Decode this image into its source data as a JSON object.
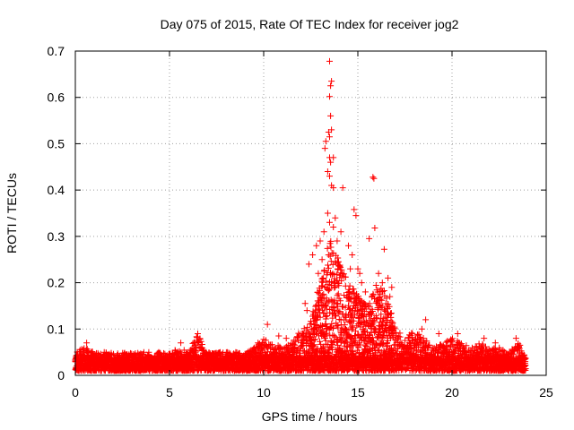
{
  "chart_data": {
    "type": "scatter",
    "title": "Day 075 of 2015, Rate Of TEC Index for receiver jog2",
    "xlabel": "GPS time / hours",
    "ylabel": "ROTI / TECUs",
    "xlim": [
      0,
      25
    ],
    "ylim": [
      0,
      0.7
    ],
    "x_ticks": [
      0,
      5,
      10,
      15,
      20,
      25
    ],
    "x_tick_labels": [
      "0",
      "5",
      "10",
      "15",
      "20",
      "25"
    ],
    "y_ticks": [
      0,
      0.1,
      0.2,
      0.3,
      0.4,
      0.5,
      0.6,
      0.7
    ],
    "y_tick_labels": [
      "0",
      "0.1",
      "0.2",
      "0.3",
      "0.4",
      "0.5",
      "0.6",
      "0.7"
    ],
    "grid": true,
    "marker": "+",
    "series": [
      {
        "name": "ROTI",
        "color": "#ff0000",
        "envelope_x": [
          0,
          0.5,
          1,
          2,
          3,
          4,
          5,
          5.5,
          6,
          6.5,
          7,
          8,
          9,
          9.5,
          10,
          10.5,
          11,
          11.5,
          12,
          12.5,
          13,
          13.5,
          14,
          14.5,
          15,
          15.5,
          16,
          16.5,
          17,
          17.5,
          18,
          18.5,
          19,
          19.5,
          20,
          20.5,
          21,
          21.5,
          22,
          22.5,
          23,
          23.5,
          23.9
        ],
        "envelope_y": [
          0.05,
          0.06,
          0.05,
          0.05,
          0.05,
          0.05,
          0.05,
          0.06,
          0.05,
          0.09,
          0.05,
          0.05,
          0.05,
          0.06,
          0.08,
          0.07,
          0.06,
          0.07,
          0.1,
          0.12,
          0.2,
          0.3,
          0.25,
          0.2,
          0.18,
          0.15,
          0.2,
          0.18,
          0.1,
          0.08,
          0.1,
          0.08,
          0.06,
          0.07,
          0.08,
          0.07,
          0.06,
          0.07,
          0.06,
          0.06,
          0.05,
          0.07,
          0.05
        ],
        "floor": 0.01,
        "base_level": 0.03,
        "points": [
          [
            13.5,
            0.678
          ],
          [
            13.6,
            0.635
          ],
          [
            13.55,
            0.625
          ],
          [
            13.5,
            0.602
          ],
          [
            13.55,
            0.56
          ],
          [
            13.45,
            0.525
          ],
          [
            13.6,
            0.53
          ],
          [
            13.5,
            0.515
          ],
          [
            13.3,
            0.505
          ],
          [
            13.25,
            0.49
          ],
          [
            13.5,
            0.47
          ],
          [
            13.7,
            0.47
          ],
          [
            13.55,
            0.46
          ],
          [
            13.4,
            0.44
          ],
          [
            13.5,
            0.43
          ],
          [
            13.6,
            0.41
          ],
          [
            13.7,
            0.405
          ],
          [
            14.2,
            0.405
          ],
          [
            15.8,
            0.428
          ],
          [
            15.85,
            0.425
          ],
          [
            14.8,
            0.358
          ],
          [
            14.9,
            0.345
          ],
          [
            15.9,
            0.318
          ],
          [
            15.6,
            0.295
          ],
          [
            16.4,
            0.272
          ],
          [
            13.5,
            0.33
          ],
          [
            13.7,
            0.32
          ],
          [
            13.4,
            0.35
          ],
          [
            13.8,
            0.34
          ],
          [
            13.2,
            0.31
          ],
          [
            14.1,
            0.31
          ],
          [
            13.9,
            0.29
          ],
          [
            13.0,
            0.29
          ],
          [
            12.8,
            0.28
          ],
          [
            12.6,
            0.26
          ],
          [
            12.4,
            0.24
          ],
          [
            12.2,
            0.155
          ],
          [
            12.3,
            0.14
          ],
          [
            12.9,
            0.22
          ],
          [
            13.1,
            0.25
          ],
          [
            14.5,
            0.28
          ],
          [
            14.7,
            0.26
          ],
          [
            14.6,
            0.23
          ],
          [
            15.0,
            0.23
          ],
          [
            15.2,
            0.2
          ],
          [
            15.4,
            0.18
          ],
          [
            16.1,
            0.22
          ],
          [
            16.3,
            0.2
          ],
          [
            16.6,
            0.21
          ],
          [
            16.8,
            0.19
          ],
          [
            16.7,
            0.17
          ],
          [
            15.1,
            0.22
          ],
          [
            18.6,
            0.12
          ],
          [
            18.4,
            0.1
          ],
          [
            19.3,
            0.09
          ],
          [
            20.3,
            0.09
          ],
          [
            21.7,
            0.08
          ],
          [
            23.4,
            0.08
          ],
          [
            6.5,
            0.09
          ],
          [
            10.2,
            0.11
          ],
          [
            11.2,
            0.08
          ],
          [
            10.8,
            0.085
          ],
          [
            9.7,
            0.07
          ],
          [
            0.6,
            0.07
          ],
          [
            5.6,
            0.07
          ],
          [
            12.0,
            0.09
          ],
          [
            17.7,
            0.08
          ],
          [
            22.3,
            0.07
          ]
        ]
      }
    ]
  }
}
